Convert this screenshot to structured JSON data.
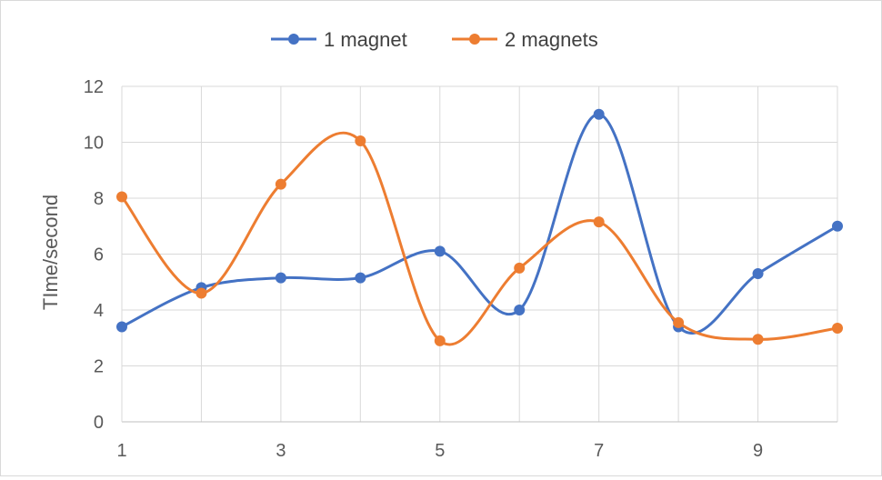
{
  "chart_data": {
    "type": "line",
    "x": [
      1,
      2,
      3,
      4,
      5,
      6,
      7,
      8,
      9,
      10
    ],
    "series": [
      {
        "name": "1 magnet",
        "color": "#4472c4",
        "values": [
          3.4,
          4.8,
          5.15,
          5.15,
          6.1,
          4.0,
          11.0,
          3.4,
          5.3,
          7.0
        ]
      },
      {
        "name": "2 magnets",
        "color": "#ed7d31",
        "values": [
          8.05,
          4.6,
          8.5,
          10.05,
          2.9,
          5.5,
          7.15,
          3.55,
          2.95,
          3.35
        ]
      }
    ],
    "x_tick_labels": [
      "1",
      "3",
      "5",
      "7",
      "9"
    ],
    "y_tick_labels": [
      "0",
      "2",
      "4",
      "6",
      "8",
      "10",
      "12"
    ],
    "ylabel": "TIme/second",
    "xlabel": "",
    "ylim": [
      0,
      12
    ],
    "grid": "vertical and horizontal",
    "smoothed": true,
    "legend_position": "top"
  }
}
